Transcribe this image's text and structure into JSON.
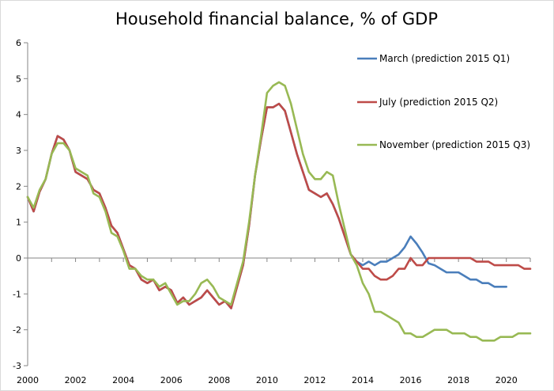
{
  "chart_data": {
    "type": "line",
    "title": "Household financial balance, % of GDP",
    "xlabel": "",
    "ylabel": "",
    "xlim": [
      2000,
      2021
    ],
    "ylim": [
      -3,
      6
    ],
    "x_ticks": [
      2000,
      2002,
      2004,
      2006,
      2008,
      2010,
      2012,
      2014,
      2016,
      2018,
      2020
    ],
    "x_tick_labels": [
      "2000",
      "2002",
      "2004",
      "2006",
      "2008",
      "2010",
      "2012",
      "2014",
      "2016",
      "2018",
      "2020"
    ],
    "y_ticks": [
      -3,
      -2,
      -1,
      0,
      1,
      2,
      3,
      4,
      5,
      6
    ],
    "y_tick_labels": [
      "-3",
      "-2",
      "-1",
      "0",
      "1",
      "2",
      "3",
      "4",
      "5",
      "6"
    ],
    "grid": false,
    "legend_position": "right",
    "series": [
      {
        "name": "March (prediction 2015 Q1)",
        "color": "#4a7ebb",
        "x": [
          2000.0,
          2000.25,
          2000.5,
          2000.75,
          2001.0,
          2001.25,
          2001.5,
          2001.75,
          2002.0,
          2002.25,
          2002.5,
          2002.75,
          2003.0,
          2003.25,
          2003.5,
          2003.75,
          2004.0,
          2004.25,
          2004.5,
          2004.75,
          2005.0,
          2005.25,
          2005.5,
          2005.75,
          2006.0,
          2006.25,
          2006.5,
          2006.75,
          2007.0,
          2007.25,
          2007.5,
          2007.75,
          2008.0,
          2008.25,
          2008.5,
          2008.75,
          2009.0,
          2009.25,
          2009.5,
          2009.75,
          2010.0,
          2010.25,
          2010.5,
          2010.75,
          2011.0,
          2011.25,
          2011.5,
          2011.75,
          2012.0,
          2012.25,
          2012.5,
          2012.75,
          2013.0,
          2013.25,
          2013.5,
          2013.75,
          2014.0,
          2014.25,
          2014.5,
          2014.75,
          2015.0,
          2015.25,
          2015.5,
          2015.75,
          2016.0,
          2016.25,
          2016.5,
          2016.75,
          2017.0,
          2017.25,
          2017.5,
          2017.75,
          2018.0,
          2018.25,
          2018.5,
          2018.75,
          2019.0,
          2019.25,
          2019.5,
          2019.75,
          2020.0
        ],
        "values": [
          1.7,
          1.3,
          1.85,
          2.2,
          2.9,
          3.4,
          3.3,
          3.0,
          2.4,
          2.3,
          2.2,
          1.9,
          1.8,
          1.4,
          0.9,
          0.7,
          0.25,
          -0.2,
          -0.3,
          -0.6,
          -0.7,
          -0.6,
          -0.9,
          -0.8,
          -0.9,
          -1.25,
          -1.1,
          -1.3,
          -1.2,
          -1.1,
          -0.9,
          -1.1,
          -1.3,
          -1.2,
          -1.4,
          -0.8,
          -0.2,
          0.9,
          2.3,
          3.3,
          4.2,
          4.2,
          4.3,
          4.1,
          3.5,
          2.9,
          2.4,
          1.9,
          1.8,
          1.7,
          1.8,
          1.5,
          1.1,
          0.6,
          0.1,
          -0.1,
          -0.2,
          -0.1,
          -0.2,
          -0.1,
          -0.1,
          0.0,
          0.1,
          0.3,
          0.6,
          0.4,
          0.15,
          -0.15,
          -0.2,
          -0.3,
          -0.4,
          -0.4,
          -0.4,
          -0.5,
          -0.6,
          -0.6,
          -0.7,
          -0.7,
          -0.8,
          -0.8,
          -0.8
        ]
      },
      {
        "name": "July (prediction 2015 Q2)",
        "color": "#be4b48",
        "x": [
          2000.0,
          2000.25,
          2000.5,
          2000.75,
          2001.0,
          2001.25,
          2001.5,
          2001.75,
          2002.0,
          2002.25,
          2002.5,
          2002.75,
          2003.0,
          2003.25,
          2003.5,
          2003.75,
          2004.0,
          2004.25,
          2004.5,
          2004.75,
          2005.0,
          2005.25,
          2005.5,
          2005.75,
          2006.0,
          2006.25,
          2006.5,
          2006.75,
          2007.0,
          2007.25,
          2007.5,
          2007.75,
          2008.0,
          2008.25,
          2008.5,
          2008.75,
          2009.0,
          2009.25,
          2009.5,
          2009.75,
          2010.0,
          2010.25,
          2010.5,
          2010.75,
          2011.0,
          2011.25,
          2011.5,
          2011.75,
          2012.0,
          2012.25,
          2012.5,
          2012.75,
          2013.0,
          2013.25,
          2013.5,
          2013.75,
          2014.0,
          2014.25,
          2014.5,
          2014.75,
          2015.0,
          2015.25,
          2015.5,
          2015.75,
          2016.0,
          2016.25,
          2016.5,
          2016.75,
          2017.0,
          2017.25,
          2017.5,
          2017.75,
          2018.0,
          2018.25,
          2018.5,
          2018.75,
          2019.0,
          2019.25,
          2019.5,
          2019.75,
          2020.0,
          2020.25,
          2020.5,
          2020.75,
          2021.0
        ],
        "values": [
          1.7,
          1.3,
          1.85,
          2.2,
          2.9,
          3.4,
          3.3,
          3.0,
          2.4,
          2.3,
          2.2,
          1.9,
          1.8,
          1.4,
          0.9,
          0.7,
          0.25,
          -0.2,
          -0.3,
          -0.6,
          -0.7,
          -0.6,
          -0.9,
          -0.8,
          -0.9,
          -1.25,
          -1.1,
          -1.3,
          -1.2,
          -1.1,
          -0.9,
          -1.1,
          -1.3,
          -1.2,
          -1.4,
          -0.8,
          -0.2,
          0.9,
          2.3,
          3.3,
          4.2,
          4.2,
          4.3,
          4.1,
          3.5,
          2.9,
          2.4,
          1.9,
          1.8,
          1.7,
          1.8,
          1.5,
          1.1,
          0.6,
          0.1,
          -0.1,
          -0.3,
          -0.3,
          -0.5,
          -0.6,
          -0.6,
          -0.5,
          -0.3,
          -0.3,
          0.0,
          -0.2,
          -0.2,
          0.0,
          0.0,
          0.0,
          0.0,
          0.0,
          0.0,
          0.0,
          0.0,
          -0.1,
          -0.1,
          -0.1,
          -0.2,
          -0.2,
          -0.2,
          -0.2,
          -0.2,
          -0.3,
          -0.3
        ]
      },
      {
        "name": "November (prediction 2015 Q3)",
        "color": "#98b954",
        "x": [
          2000.0,
          2000.25,
          2000.5,
          2000.75,
          2001.0,
          2001.25,
          2001.5,
          2001.75,
          2002.0,
          2002.25,
          2002.5,
          2002.75,
          2003.0,
          2003.25,
          2003.5,
          2003.75,
          2004.0,
          2004.25,
          2004.5,
          2004.75,
          2005.0,
          2005.25,
          2005.5,
          2005.75,
          2006.0,
          2006.25,
          2006.5,
          2006.75,
          2007.0,
          2007.25,
          2007.5,
          2007.75,
          2008.0,
          2008.25,
          2008.5,
          2008.75,
          2009.0,
          2009.25,
          2009.5,
          2009.75,
          2010.0,
          2010.25,
          2010.5,
          2010.75,
          2011.0,
          2011.25,
          2011.5,
          2011.75,
          2012.0,
          2012.25,
          2012.5,
          2012.75,
          2013.0,
          2013.25,
          2013.5,
          2013.75,
          2014.0,
          2014.25,
          2014.5,
          2014.75,
          2015.0,
          2015.25,
          2015.5,
          2015.75,
          2016.0,
          2016.25,
          2016.5,
          2016.75,
          2017.0,
          2017.25,
          2017.5,
          2017.75,
          2018.0,
          2018.25,
          2018.5,
          2018.75,
          2019.0,
          2019.25,
          2019.5,
          2019.75,
          2020.0,
          2020.25,
          2020.5,
          2020.75,
          2021.0
        ],
        "values": [
          1.7,
          1.4,
          1.9,
          2.2,
          2.9,
          3.2,
          3.2,
          3.0,
          2.5,
          2.4,
          2.3,
          1.8,
          1.7,
          1.3,
          0.7,
          0.6,
          0.2,
          -0.3,
          -0.3,
          -0.5,
          -0.6,
          -0.6,
          -0.8,
          -0.7,
          -1.0,
          -1.3,
          -1.2,
          -1.2,
          -1.0,
          -0.7,
          -0.6,
          -0.8,
          -1.1,
          -1.2,
          -1.3,
          -0.7,
          -0.1,
          1.0,
          2.3,
          3.4,
          4.6,
          4.8,
          4.9,
          4.8,
          4.3,
          3.6,
          2.9,
          2.4,
          2.2,
          2.2,
          2.4,
          2.3,
          1.5,
          0.8,
          0.1,
          -0.2,
          -0.7,
          -1.0,
          -1.5,
          -1.5,
          -1.6,
          -1.7,
          -1.8,
          -2.1,
          -2.1,
          -2.2,
          -2.2,
          -2.1,
          -2.0,
          -2.0,
          -2.0,
          -2.1,
          -2.1,
          -2.1,
          -2.2,
          -2.2,
          -2.3,
          -2.3,
          -2.3,
          -2.2,
          -2.2,
          -2.2,
          -2.1,
          -2.1,
          -2.1
        ]
      }
    ]
  }
}
